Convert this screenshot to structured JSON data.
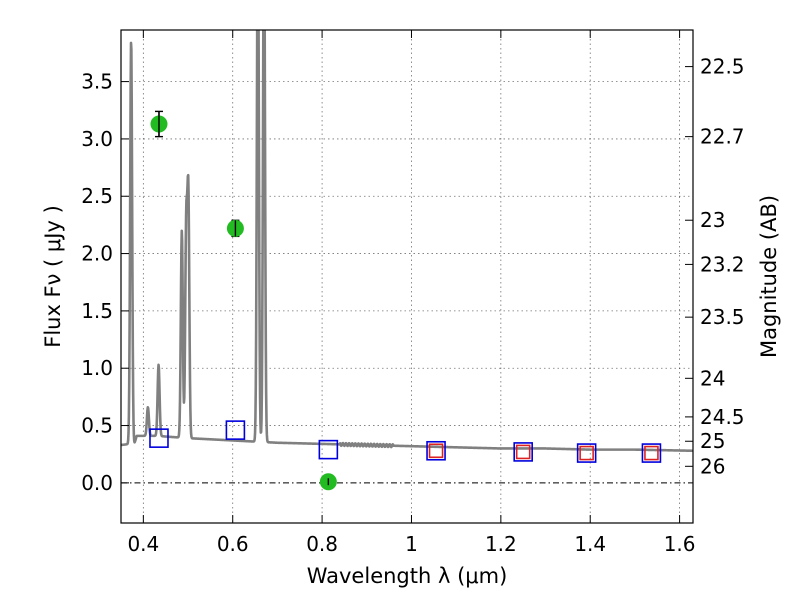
{
  "chart_data": {
    "type": "scatter",
    "xlabel": "Wavelength  λ (μm)",
    "ylabel": "Flux  Fν  ( μJy )",
    "y2label": "Magnitude (AB)",
    "xlim": [
      0.35,
      1.63
    ],
    "ylim": [
      -0.35,
      3.95
    ],
    "grid": true,
    "x_ticks": [
      0.4,
      0.6,
      0.8,
      1.0,
      1.2,
      1.4,
      1.6
    ],
    "x_tick_labels": [
      "0.4",
      "0.6",
      "0.8",
      "1",
      "1.2",
      "1.4",
      "1.6"
    ],
    "y_ticks": [
      0.0,
      0.5,
      1.0,
      1.5,
      2.0,
      2.5,
      3.0,
      3.5
    ],
    "y_tick_labels": [
      "0.0",
      "0.5",
      "1.0",
      "1.5",
      "2.0",
      "2.5",
      "3.0",
      "3.5"
    ],
    "y2_tick_labels": [
      "22.5",
      "22.7",
      "23",
      "23.2",
      "23.5",
      "24",
      "24.5",
      "25",
      "26"
    ],
    "zero_line": 0.0,
    "series": [
      {
        "name": "model spectrum",
        "kind": "line",
        "color": "#808080",
        "continuum": [
          [
            0.35,
            0.33
          ],
          [
            0.37,
            0.34
          ],
          [
            0.38,
            0.34
          ],
          [
            0.385,
            0.41
          ],
          [
            0.43,
            0.41
          ],
          [
            0.5,
            0.39
          ],
          [
            0.6,
            0.37
          ],
          [
            0.7,
            0.35
          ],
          [
            0.8,
            0.34
          ],
          [
            0.9,
            0.33
          ],
          [
            1.0,
            0.32
          ],
          [
            1.1,
            0.31
          ],
          [
            1.2,
            0.3
          ],
          [
            1.3,
            0.3
          ],
          [
            1.4,
            0.29
          ],
          [
            1.5,
            0.29
          ],
          [
            1.63,
            0.28
          ]
        ],
        "emission_lines": [
          {
            "x": 0.3727,
            "peak": 3.87
          },
          {
            "x": 0.4102,
            "peak": 0.66
          },
          {
            "x": 0.4341,
            "peak": 1.03
          },
          {
            "x": 0.4861,
            "peak": 2.2
          },
          {
            "x": 0.4959,
            "peak": 2.2
          },
          {
            "x": 0.5007,
            "peak": 2.48
          },
          {
            "x": 0.6563,
            "peak": 5.0
          },
          {
            "x": 0.67,
            "peak": 5.0
          }
        ]
      },
      {
        "name": "observed photometry",
        "kind": "points",
        "color": "#22bb22",
        "points": [
          {
            "x": 0.435,
            "y": 3.13,
            "err": 0.11
          },
          {
            "x": 0.606,
            "y": 2.22,
            "err": 0.07
          },
          {
            "x": 0.814,
            "y": 0.01,
            "err": 0.03
          }
        ]
      },
      {
        "name": "model photometry",
        "kind": "open-squares",
        "color": "#0000dd",
        "points": [
          {
            "x": 0.435,
            "y": 0.39
          },
          {
            "x": 0.606,
            "y": 0.46
          },
          {
            "x": 0.814,
            "y": 0.29
          },
          {
            "x": 1.055,
            "y": 0.28
          },
          {
            "x": 1.25,
            "y": 0.27
          },
          {
            "x": 1.392,
            "y": 0.26
          },
          {
            "x": 1.537,
            "y": 0.26
          }
        ]
      },
      {
        "name": "red squares",
        "kind": "open-squares",
        "color": "#dd2222",
        "points": [
          {
            "x": 1.055,
            "y": 0.28
          },
          {
            "x": 1.25,
            "y": 0.27
          },
          {
            "x": 1.392,
            "y": 0.26
          },
          {
            "x": 1.537,
            "y": 0.26
          }
        ]
      }
    ]
  }
}
